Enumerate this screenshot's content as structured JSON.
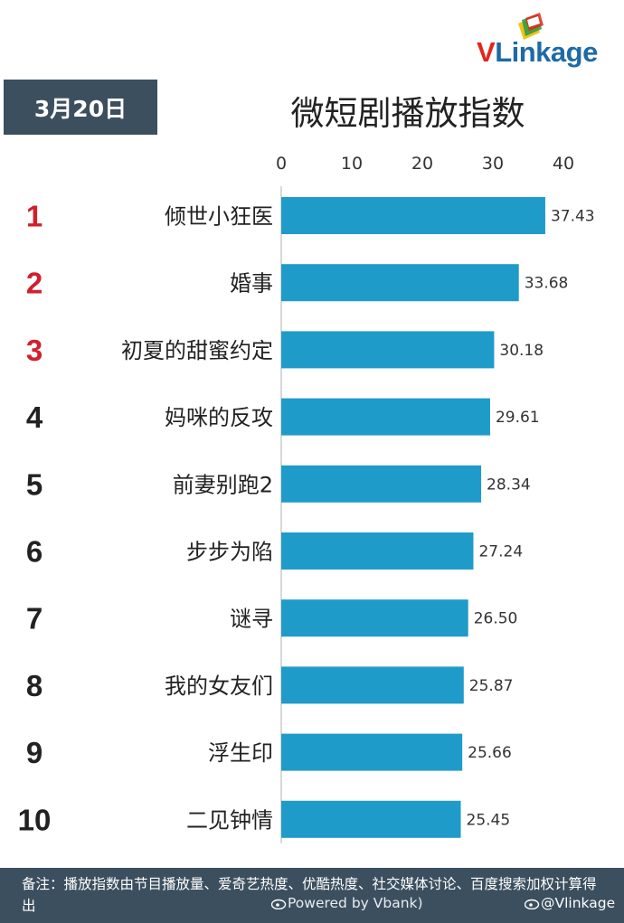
{
  "logo": {
    "brand_v": "V",
    "brand_rest": "Linkage"
  },
  "date": "3月20日",
  "title": "微短剧播放指数",
  "chart_data": {
    "type": "bar",
    "orientation": "horizontal",
    "title": "微短剧播放指数",
    "xlim": [
      0,
      40
    ],
    "x_ticks": [
      0,
      10,
      20,
      30,
      40
    ],
    "axis_position": "top",
    "bar_color": "#1e9bc9",
    "rank_color_top3": "#d0202e",
    "rank_color_rest": "#222222",
    "ranks": [
      "1",
      "2",
      "3",
      "4",
      "5",
      "6",
      "7",
      "8",
      "9",
      "10"
    ],
    "categories": [
      "倾世小狂医",
      "婚事",
      "初夏的甜蜜约定",
      "妈咪的反攻",
      "前妻别跑2",
      "步步为陷",
      "谜寻",
      "我的女友们",
      "浮生印",
      "二见钟情"
    ],
    "values": [
      37.43,
      33.68,
      30.18,
      29.61,
      28.34,
      27.24,
      26.5,
      25.87,
      25.66,
      25.45
    ],
    "value_labels": [
      "37.43",
      "33.68",
      "30.18",
      "29.61",
      "28.34",
      "27.24",
      "26.50",
      "25.87",
      "25.66",
      "25.45"
    ]
  },
  "footer": {
    "note": "备注：播放指数由节目播放量、爱奇艺热度、优酷热度、社交媒体讨论、百度搜索加权计算得出",
    "credit": "Powered by Vbank)",
    "handle": "@Vlinkage"
  }
}
